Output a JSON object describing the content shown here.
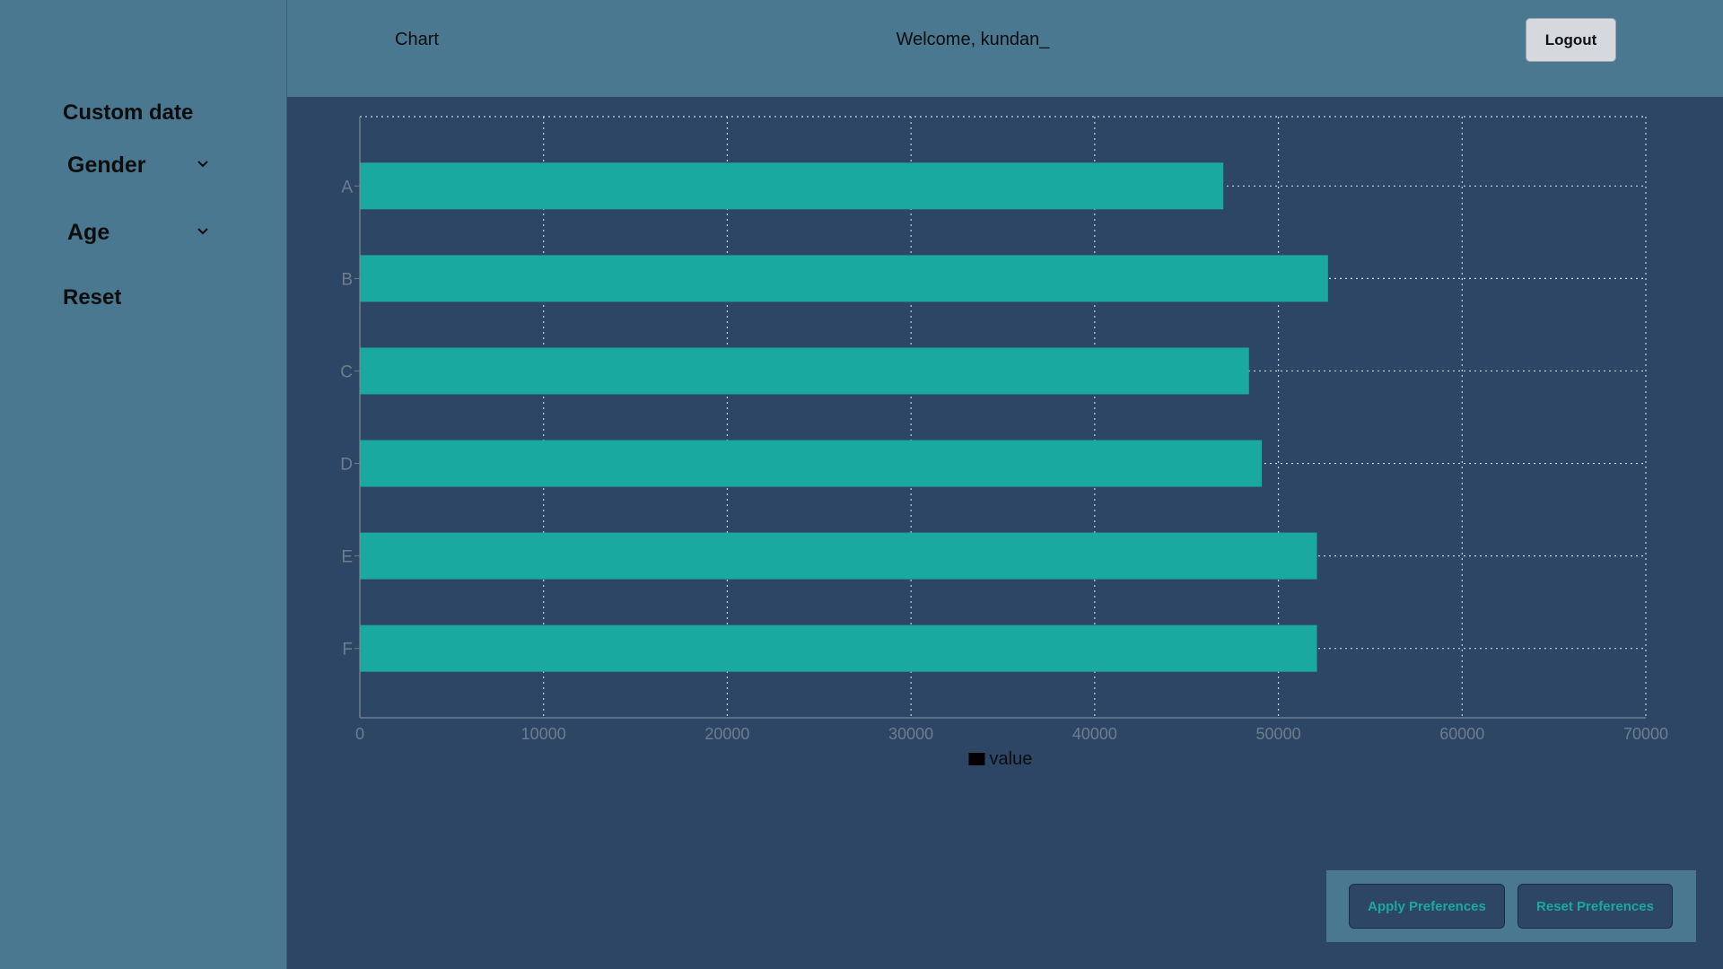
{
  "sidebar": {
    "custom_date": "Custom date",
    "gender": "Gender",
    "age": "Age",
    "reset": "Reset"
  },
  "header": {
    "title": "Chart",
    "welcome": "Welcome, kundan_",
    "logout": "Logout"
  },
  "footer": {
    "apply": "Apply Preferences",
    "reset": "Reset Preferences"
  },
  "colors": {
    "bar": "#1aa9a0",
    "grid": "#c9d3de",
    "tick": "#6f7d8c",
    "legend_swatch": "#000000"
  },
  "chart_data": {
    "type": "bar",
    "orientation": "horizontal",
    "categories": [
      "A",
      "B",
      "C",
      "D",
      "E",
      "F"
    ],
    "series": [
      {
        "name": "value",
        "values": [
          47000,
          52700,
          48400,
          49100,
          52100,
          52100
        ]
      }
    ],
    "xticks": [
      "0",
      "10000",
      "20000",
      "30000",
      "40000",
      "50000",
      "60000",
      "70000"
    ],
    "xlim": [
      0,
      70000
    ],
    "grid": true,
    "legend": "bottom-center"
  }
}
